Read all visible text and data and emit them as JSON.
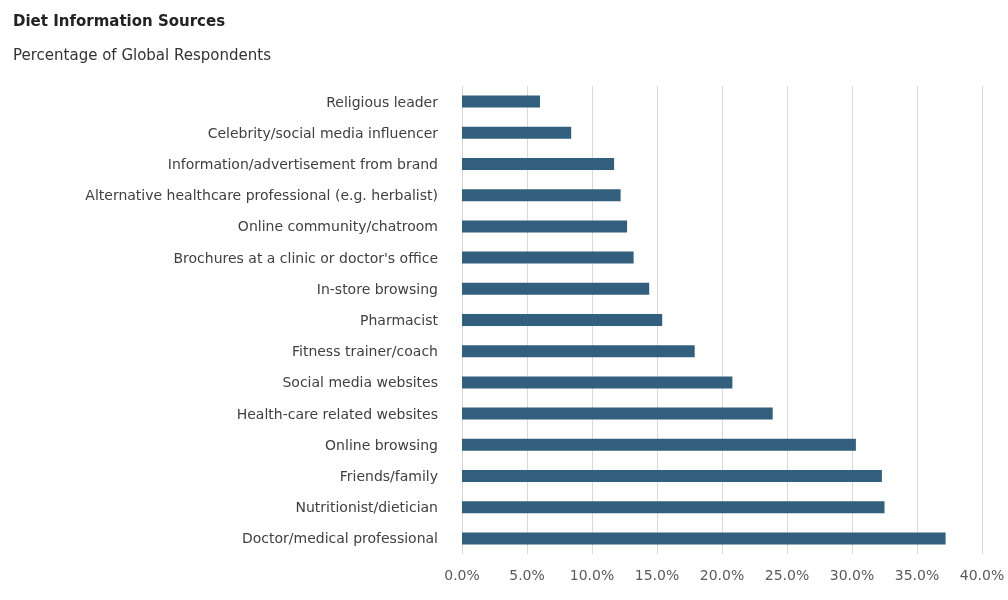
{
  "chart_data": {
    "type": "bar",
    "orientation": "horizontal",
    "title": "Diet Information Sources",
    "subtitle": "Percentage of Global Respondents",
    "categories": [
      "Religious leader",
      "Celebrity/social media influencer",
      "Information/advertisement from brand",
      "Alternative healthcare professional (e.g. herbalist)",
      "Online community/chatroom",
      "Brochures at a clinic or doctor's office",
      "In-store browsing",
      "Pharmacist",
      "Fitness trainer/coach",
      "Social media websites",
      "Health-care related websites",
      "Online browsing",
      "Friends/family",
      "Nutritionist/dietician",
      "Doctor/medical professional"
    ],
    "values": [
      6.0,
      8.4,
      11.7,
      12.2,
      12.7,
      13.2,
      14.4,
      15.4,
      17.9,
      20.8,
      23.9,
      30.3,
      32.3,
      32.5,
      37.2
    ],
    "color": "#335f7e",
    "xlim": [
      0,
      40
    ],
    "xticks": [
      {
        "value": 0,
        "label": "0.0%"
      },
      {
        "value": 5,
        "label": "5.0%"
      },
      {
        "value": 10,
        "label": "10.0%"
      },
      {
        "value": 15,
        "label": "15.0%"
      },
      {
        "value": 20,
        "label": "20.0%"
      },
      {
        "value": 25,
        "label": "25.0%"
      },
      {
        "value": 30,
        "label": "30.0%"
      },
      {
        "value": 35,
        "label": "35.0%"
      },
      {
        "value": 40,
        "label": "40.0%"
      }
    ],
    "grid": "x"
  }
}
